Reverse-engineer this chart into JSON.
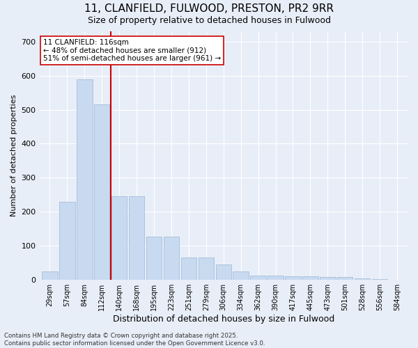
{
  "title": "11, CLANFIELD, FULWOOD, PRESTON, PR2 9RR",
  "subtitle": "Size of property relative to detached houses in Fulwood",
  "xlabel": "Distribution of detached houses by size in Fulwood",
  "ylabel": "Number of detached properties",
  "categories": [
    "29sqm",
    "57sqm",
    "84sqm",
    "112sqm",
    "140sqm",
    "168sqm",
    "195sqm",
    "223sqm",
    "251sqm",
    "279sqm",
    "306sqm",
    "334sqm",
    "362sqm",
    "390sqm",
    "417sqm",
    "445sqm",
    "473sqm",
    "501sqm",
    "528sqm",
    "556sqm",
    "584sqm"
  ],
  "values": [
    25,
    230,
    590,
    515,
    245,
    245,
    128,
    128,
    65,
    65,
    45,
    25,
    13,
    13,
    10,
    10,
    8,
    8,
    5,
    2,
    1
  ],
  "bar_color": "#c8daf0",
  "bar_edge_color": "#9ab4d4",
  "bar_width": 0.9,
  "vline_x": 3.5,
  "vline_color": "#cc0000",
  "annotation_text": "11 CLANFIELD: 116sqm\n← 48% of detached houses are smaller (912)\n51% of semi-detached houses are larger (961) →",
  "annotation_box_color": "#ffffff",
  "annotation_box_edge_color": "#cc0000",
  "ylim": [
    0,
    730
  ],
  "yticks": [
    0,
    100,
    200,
    300,
    400,
    500,
    600,
    700
  ],
  "background_color": "#e8eef8",
  "grid_color": "#ffffff",
  "footer": "Contains HM Land Registry data © Crown copyright and database right 2025.\nContains public sector information licensed under the Open Government Licence v3.0."
}
